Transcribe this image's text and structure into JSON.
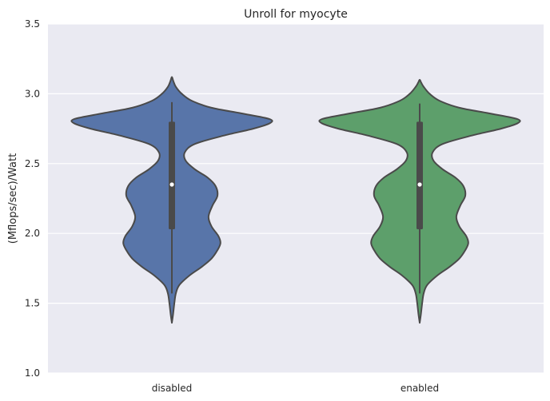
{
  "chart_data": {
    "type": "violin",
    "title": "Unroll for myocyte",
    "xlabel": "",
    "ylabel": "(Mflops/sec)/Watt",
    "ylim": [
      1.0,
      3.5
    ],
    "yticks": [
      "1.0",
      "1.5",
      "2.0",
      "2.5",
      "3.0",
      "3.5"
    ],
    "grid": true,
    "categories": [
      "disabled",
      "enabled"
    ],
    "colors": {
      "background": "#EAEAF2",
      "grid": "#FFFFFF",
      "outline": "#4A4A4A"
    },
    "violins": [
      {
        "category": "disabled",
        "color": "#5875A9",
        "min": 1.36,
        "max": 3.12,
        "whisker_low": 1.57,
        "whisker_high": 2.94,
        "q1": 2.03,
        "median": 2.35,
        "q3": 2.8,
        "profile": [
          [
            1.36,
            0.0
          ],
          [
            1.42,
            0.012
          ],
          [
            1.5,
            0.025
          ],
          [
            1.57,
            0.04
          ],
          [
            1.63,
            0.075
          ],
          [
            1.7,
            0.18
          ],
          [
            1.76,
            0.3
          ],
          [
            1.82,
            0.4
          ],
          [
            1.88,
            0.46
          ],
          [
            1.93,
            0.49
          ],
          [
            1.98,
            0.47
          ],
          [
            2.05,
            0.4
          ],
          [
            2.12,
            0.37
          ],
          [
            2.2,
            0.41
          ],
          [
            2.27,
            0.46
          ],
          [
            2.34,
            0.44
          ],
          [
            2.4,
            0.36
          ],
          [
            2.46,
            0.23
          ],
          [
            2.52,
            0.14
          ],
          [
            2.58,
            0.13
          ],
          [
            2.64,
            0.23
          ],
          [
            2.7,
            0.52
          ],
          [
            2.75,
            0.82
          ],
          [
            2.79,
            0.99
          ],
          [
            2.82,
            0.98
          ],
          [
            2.86,
            0.7
          ],
          [
            2.9,
            0.4
          ],
          [
            2.95,
            0.2
          ],
          [
            3.0,
            0.1
          ],
          [
            3.05,
            0.04
          ],
          [
            3.09,
            0.015
          ],
          [
            3.12,
            0.0
          ]
        ]
      },
      {
        "category": "enabled",
        "color": "#5D9F6B",
        "min": 1.36,
        "max": 3.1,
        "whisker_low": 1.57,
        "whisker_high": 2.93,
        "q1": 2.03,
        "median": 2.35,
        "q3": 2.8,
        "profile": [
          [
            1.36,
            0.0
          ],
          [
            1.42,
            0.012
          ],
          [
            1.5,
            0.025
          ],
          [
            1.57,
            0.04
          ],
          [
            1.63,
            0.075
          ],
          [
            1.7,
            0.18
          ],
          [
            1.76,
            0.3
          ],
          [
            1.82,
            0.4
          ],
          [
            1.88,
            0.46
          ],
          [
            1.93,
            0.49
          ],
          [
            1.98,
            0.47
          ],
          [
            2.05,
            0.4
          ],
          [
            2.12,
            0.37
          ],
          [
            2.2,
            0.41
          ],
          [
            2.27,
            0.46
          ],
          [
            2.34,
            0.44
          ],
          [
            2.4,
            0.36
          ],
          [
            2.46,
            0.23
          ],
          [
            2.52,
            0.14
          ],
          [
            2.58,
            0.13
          ],
          [
            2.64,
            0.23
          ],
          [
            2.7,
            0.52
          ],
          [
            2.75,
            0.82
          ],
          [
            2.79,
            0.99
          ],
          [
            2.82,
            0.98
          ],
          [
            2.86,
            0.7
          ],
          [
            2.9,
            0.4
          ],
          [
            2.95,
            0.2
          ],
          [
            3.0,
            0.1
          ],
          [
            3.05,
            0.04
          ],
          [
            3.08,
            0.015
          ],
          [
            3.1,
            0.0
          ]
        ]
      }
    ]
  }
}
